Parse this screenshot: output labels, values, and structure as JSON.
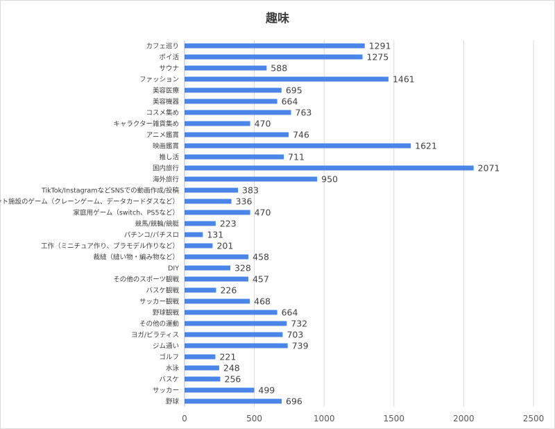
{
  "chart_data": {
    "type": "bar",
    "orientation": "horizontal",
    "title": "趣味",
    "xlim": [
      0,
      2500
    ],
    "xticks": [
      0,
      500,
      1000,
      1500,
      2000,
      2500
    ],
    "grid": "vertical",
    "bar_color": "#4a86e8",
    "categories": [
      "カフェ巡り",
      "ポイ活",
      "サウナ",
      "ファッション",
      "美容医療",
      "美容機器",
      "コスメ集め",
      "キャラクター雑貨集め",
      "アニメ鑑賞",
      "映画鑑賞",
      "推し活",
      "国内旅行",
      "海外旅行",
      "TikTok/InstagramなどSNSでの動画作成/投稿",
      "アミューズメント施設のゲーム（クレーンゲーム、データカードダスなど）",
      "家庭用ゲーム（switch、PS5など）",
      "競馬/競輪/競艇",
      "パチンコ/パチスロ",
      "工作（ミニチュア作り、プラモデル作りなど）",
      "裁縫（縫い物・編み物など）",
      "DIY",
      "その他のスポーツ観戦",
      "バスケ観戦",
      "サッカー観戦",
      "野球観戦",
      "その他の運動",
      "ヨガ/ピラティス",
      "ジム通い",
      "ゴルフ",
      "水泳",
      "バスケ",
      "サッカー",
      "野球"
    ],
    "values": [
      1291,
      1275,
      588,
      1461,
      695,
      664,
      763,
      470,
      746,
      1621,
      711,
      2071,
      950,
      383,
      336,
      470,
      223,
      131,
      201,
      458,
      328,
      457,
      226,
      468,
      664,
      732,
      703,
      739,
      221,
      248,
      256,
      499,
      696
    ]
  }
}
